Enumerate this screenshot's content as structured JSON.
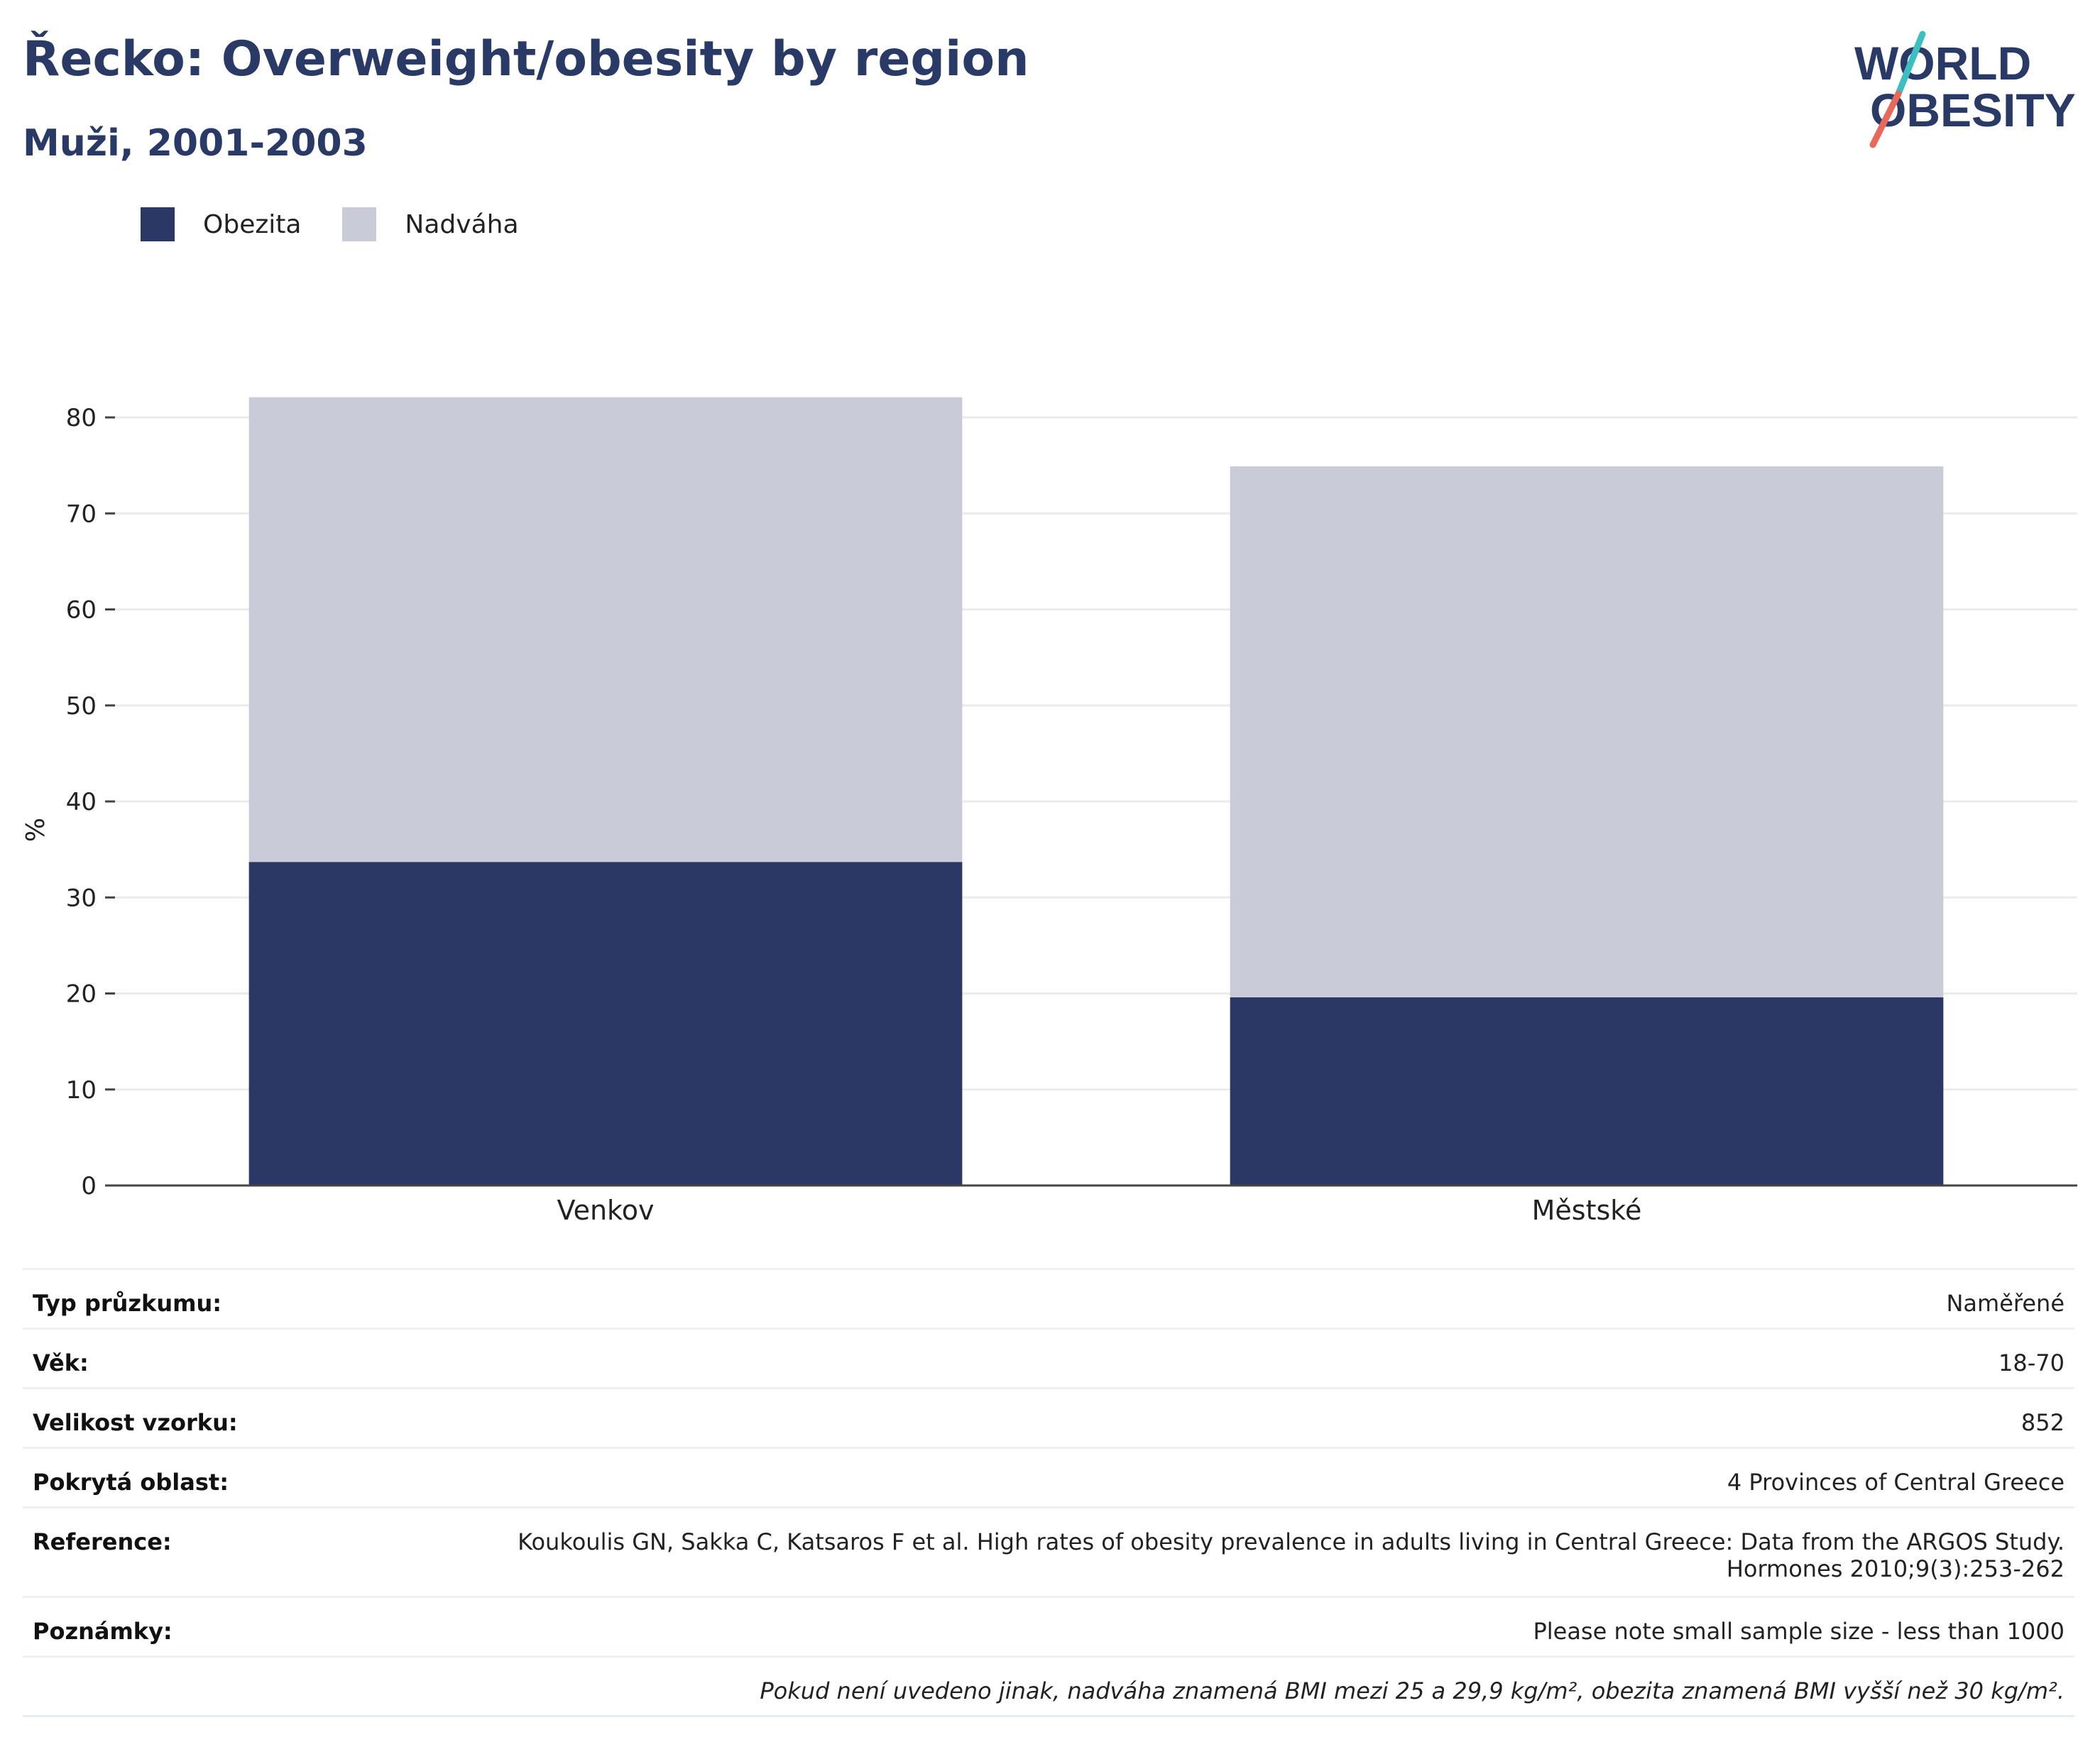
{
  "header": {
    "title": "Řecko: Overweight/obesity by region",
    "subtitle": "Muži, 2001-2003"
  },
  "logo": {
    "line1": "WORLD",
    "line2": "OBESITY",
    "colors": {
      "text": "#2a3a66",
      "slash_top": "#3bbfc1",
      "slash_bottom": "#e8685a"
    }
  },
  "legend": [
    {
      "label": "Obezita",
      "color": "#2b3764"
    },
    {
      "label": "Nadváha",
      "color": "#c9ccd8"
    }
  ],
  "chart_data": {
    "type": "bar",
    "stacked": true,
    "categories": [
      "Venkov",
      "Městské"
    ],
    "series": [
      {
        "name": "Obezita",
        "values": [
          33.7,
          19.6
        ],
        "color": "#2b3764"
      },
      {
        "name": "Nadváha",
        "values": [
          48.4,
          55.3
        ],
        "color": "#c9ccd8"
      }
    ],
    "ylabel": "%",
    "ylim": [
      0,
      80
    ],
    "yticks": [
      0,
      10,
      20,
      30,
      40,
      50,
      60,
      70,
      80
    ],
    "grid": true,
    "legend_position": "top-left"
  },
  "info_table": {
    "rows": [
      {
        "key": "Typ průzkumu:",
        "value": "Naměřené"
      },
      {
        "key": "Věk:",
        "value": "18-70"
      },
      {
        "key": "Velikost vzorku:",
        "value": "852"
      },
      {
        "key": "Pokrytá oblast:",
        "value": "4 Provinces of Central Greece"
      },
      {
        "key": "Reference:",
        "value": "Koukoulis GN, Sakka C, Katsaros F et al. High rates of obesity prevalence in adults living in Central Greece: Data from the ARGOS Study.",
        "value2": "Hormones 2010;9(3):253-262"
      },
      {
        "key": "Poznámky:",
        "value": "Please note small sample size - less than 1000"
      }
    ],
    "footnote": "Pokud není uvedeno jinak, nadváha znamená BMI mezi 25 a 29,9 kg/m², obezita znamená BMI vyšší než 30 kg/m²."
  }
}
